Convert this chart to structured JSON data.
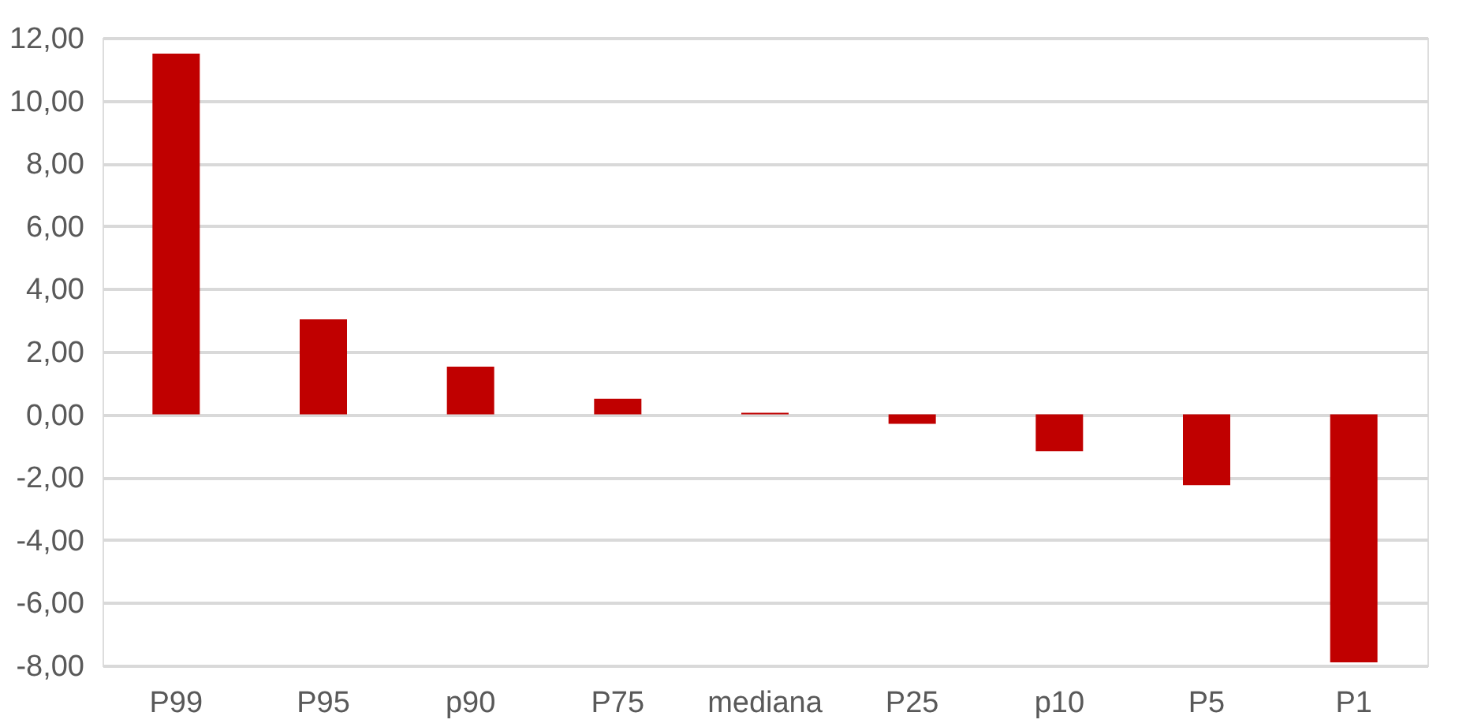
{
  "chart_data": {
    "type": "bar",
    "categories": [
      "P99",
      "P95",
      "p90",
      "P75",
      "mediana",
      "P25",
      "p10",
      "P5",
      "P1"
    ],
    "values": [
      11.5,
      3.03,
      1.52,
      0.5,
      0.05,
      -0.3,
      -1.17,
      -2.25,
      -7.9
    ],
    "color": "#c00000",
    "ylim": [
      -8,
      12
    ],
    "yticks": [
      {
        "value": -8,
        "label": "-8,00"
      },
      {
        "value": -6,
        "label": "-6,00"
      },
      {
        "value": -4,
        "label": "-4,00"
      },
      {
        "value": -2,
        "label": "-2,00"
      },
      {
        "value": 0,
        "label": "0,00"
      },
      {
        "value": 2,
        "label": "2,00"
      },
      {
        "value": 4,
        "label": "4,00"
      },
      {
        "value": 6,
        "label": "6,00"
      },
      {
        "value": 8,
        "label": "8,00"
      },
      {
        "value": 10,
        "label": "10,00"
      },
      {
        "value": 12,
        "label": "12,00"
      }
    ],
    "grid": "y"
  }
}
